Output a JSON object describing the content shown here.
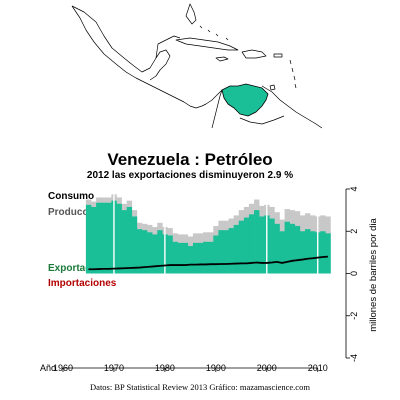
{
  "header": {
    "title": "Venezuela :  Petróleo",
    "subtitle": "2012 las exportaciones disminuyeron 2.9 %"
  },
  "legend": {
    "consumo": "Consumo",
    "produccion": "Producción",
    "exportaciones": "Exportaciones",
    "importaciones": "Importaciones"
  },
  "axes": {
    "x_label": "Año",
    "y_label": "millones de barriles por dia"
  },
  "source": "Datos: BP Statistical Review 2013   Gráfico: mazamascience.com",
  "colors": {
    "production": "#c8c8c8",
    "exports": "#1abf97",
    "consumption": "#000000",
    "imports": "#b40000",
    "consumo_label": "#000000",
    "produccion_label": "#555555",
    "exportaciones_label": "#1a7a3a",
    "importaciones_label": "#b40000",
    "map_highlight": "#1abf97"
  },
  "chart_data": {
    "type": "area",
    "x_ticks": [
      1960,
      1970,
      1980,
      1990,
      2000,
      2010
    ],
    "y_ticks": [
      4,
      2,
      0,
      -2,
      -4
    ],
    "xlim": [
      1960,
      2013
    ],
    "ylim": [
      -4,
      4
    ],
    "x": [
      1965,
      1966,
      1967,
      1968,
      1969,
      1970,
      1971,
      1972,
      1973,
      1974,
      1975,
      1976,
      1977,
      1978,
      1979,
      1980,
      1981,
      1982,
      1983,
      1984,
      1985,
      1986,
      1987,
      1988,
      1989,
      1990,
      1991,
      1992,
      1993,
      1994,
      1995,
      1996,
      1997,
      1998,
      1999,
      2000,
      2001,
      2002,
      2003,
      2004,
      2005,
      2006,
      2007,
      2008,
      2009,
      2010,
      2011,
      2012
    ],
    "series": [
      {
        "name": "Producción",
        "values": [
          3.5,
          3.4,
          3.6,
          3.6,
          3.6,
          3.75,
          3.6,
          3.3,
          3.45,
          3.0,
          2.4,
          2.35,
          2.3,
          2.2,
          2.4,
          2.2,
          2.15,
          1.9,
          1.85,
          1.85,
          1.75,
          1.9,
          1.9,
          1.95,
          1.95,
          2.25,
          2.5,
          2.5,
          2.6,
          2.75,
          3.0,
          3.15,
          3.3,
          3.5,
          3.2,
          3.25,
          3.15,
          2.9,
          2.55,
          3.05,
          3.0,
          2.95,
          2.75,
          2.85,
          2.75,
          2.7,
          2.75,
          2.7
        ]
      },
      {
        "name": "Exportaciones",
        "values": [
          3.25,
          3.15,
          3.35,
          3.35,
          3.35,
          3.45,
          3.3,
          3.0,
          3.15,
          2.7,
          2.1,
          2.05,
          1.95,
          1.85,
          2.05,
          1.85,
          1.8,
          1.5,
          1.45,
          1.45,
          1.3,
          1.45,
          1.45,
          1.5,
          1.5,
          1.8,
          2.05,
          2.05,
          2.15,
          2.3,
          2.5,
          2.65,
          2.8,
          3.0,
          2.7,
          2.75,
          2.6,
          2.35,
          2.0,
          2.45,
          2.35,
          2.25,
          2.0,
          2.1,
          2.0,
          1.95,
          2.0,
          1.9
        ]
      },
      {
        "name": "Consumo",
        "values": [
          0.2,
          0.2,
          0.21,
          0.22,
          0.22,
          0.23,
          0.24,
          0.25,
          0.26,
          0.27,
          0.28,
          0.3,
          0.32,
          0.34,
          0.36,
          0.38,
          0.4,
          0.4,
          0.4,
          0.4,
          0.42,
          0.42,
          0.43,
          0.43,
          0.44,
          0.44,
          0.45,
          0.45,
          0.46,
          0.47,
          0.48,
          0.48,
          0.5,
          0.52,
          0.5,
          0.5,
          0.52,
          0.55,
          0.5,
          0.55,
          0.6,
          0.63,
          0.66,
          0.7,
          0.72,
          0.75,
          0.78,
          0.8
        ]
      },
      {
        "name": "Importaciones",
        "values": [
          0,
          0,
          0,
          0,
          0,
          0,
          0,
          0,
          0,
          0,
          0,
          0,
          0,
          0,
          0,
          0,
          0,
          0,
          0,
          0,
          0,
          0,
          0,
          0,
          0,
          0,
          0,
          0,
          0,
          0,
          0,
          0,
          0,
          0,
          0,
          0,
          0,
          0,
          0,
          0,
          0,
          0,
          0,
          0,
          0,
          0,
          0,
          0
        ]
      }
    ],
    "vertical_markers": [
      1970,
      1980,
      2000,
      2010
    ]
  }
}
